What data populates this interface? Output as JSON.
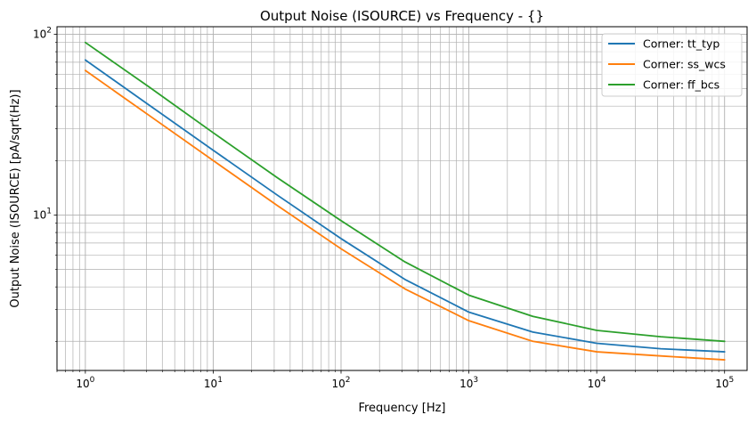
{
  "chart_data": {
    "type": "line",
    "title": "Output Noise (ISOURCE) vs Frequency - {}",
    "xlabel": "Frequency [Hz]",
    "ylabel": "Output Noise (ISOURCE) [pA/sqrt(Hz)]",
    "xscale": "log",
    "yscale": "log",
    "xlim": [
      0.6,
      150000
    ],
    "ylim": [
      1.38,
      110
    ],
    "x_ticks": [
      {
        "value": 1,
        "base": "10",
        "exp": "0"
      },
      {
        "value": 10,
        "base": "10",
        "exp": "1"
      },
      {
        "value": 100,
        "base": "10",
        "exp": "2"
      },
      {
        "value": 1000,
        "base": "10",
        "exp": "3"
      },
      {
        "value": 10000,
        "base": "10",
        "exp": "4"
      },
      {
        "value": 100000,
        "base": "10",
        "exp": "5"
      }
    ],
    "y_ticks": [
      {
        "value": 10,
        "base": "10",
        "exp": "1"
      },
      {
        "value": 100,
        "base": "10",
        "exp": "2"
      }
    ],
    "grid": true,
    "legend_position": "top-right",
    "x": [
      1,
      3.16,
      10,
      31.6,
      100,
      316,
      1000,
      3162,
      10000,
      31623,
      100000
    ],
    "series": [
      {
        "name": "Corner: tt_typ",
        "color": "#1f77b4",
        "values": [
          72,
          40.5,
          22.8,
          12.9,
          7.4,
          4.4,
          2.9,
          2.25,
          1.95,
          1.82,
          1.75
        ]
      },
      {
        "name": "Corner: ss_wcs",
        "color": "#ff7f0e",
        "values": [
          63,
          35.5,
          20,
          11.3,
          6.5,
          3.9,
          2.6,
          2.0,
          1.75,
          1.66,
          1.58
        ]
      },
      {
        "name": "Corner: ff_bcs",
        "color": "#2ca02c",
        "values": [
          90,
          51,
          28.5,
          16.1,
          9.3,
          5.5,
          3.6,
          2.75,
          2.3,
          2.12,
          2.0
        ]
      }
    ]
  }
}
